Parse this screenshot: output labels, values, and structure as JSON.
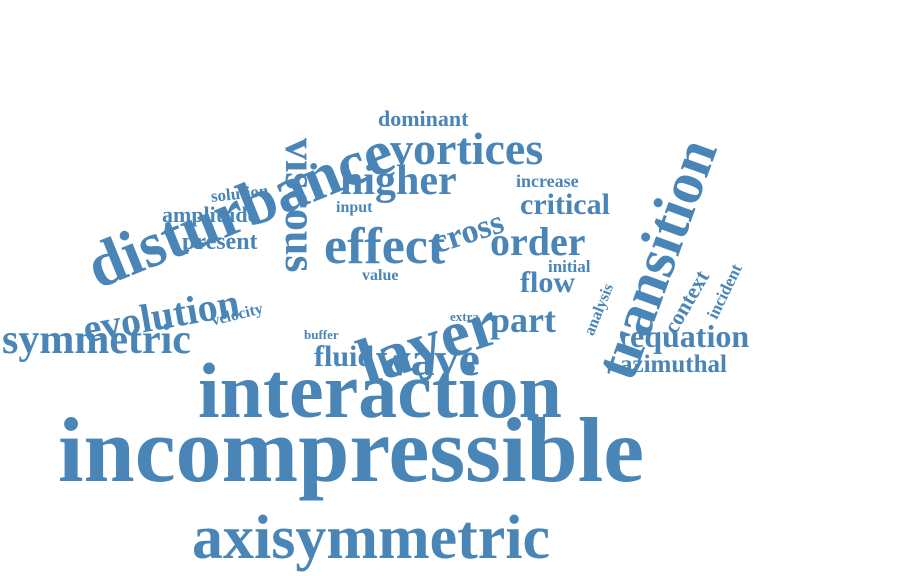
{
  "colors": {
    "word": "#4a85b7",
    "background": "#ffffff"
  },
  "words": {
    "incompressible": "incompressible",
    "interaction": "interaction",
    "axisymmetric": "axisymmetric",
    "disturbance": "disturbance",
    "transition": "transition",
    "layer": "layer",
    "viscous": "viscous",
    "effect": "effect",
    "symmetric": "symmetric",
    "vortices": "vortices",
    "wave": "wave",
    "evolution": "evolution",
    "higher": "higher",
    "order": "order",
    "cross": "cross",
    "part": "part",
    "equation": "equation",
    "critical": "critical",
    "flow": "flow",
    "fluid": "fluid",
    "azimuthal": "azimuthal",
    "amplitude": "amplitude",
    "present": "present",
    "context": "context",
    "dominant": "dominant",
    "solution": "solution",
    "increase": "increase",
    "velocity": "velocity",
    "input": "input",
    "value": "value",
    "initial": "initial",
    "analysis": "analysis",
    "incident": "incident",
    "buffer": "buffer",
    "extra": "extra"
  }
}
